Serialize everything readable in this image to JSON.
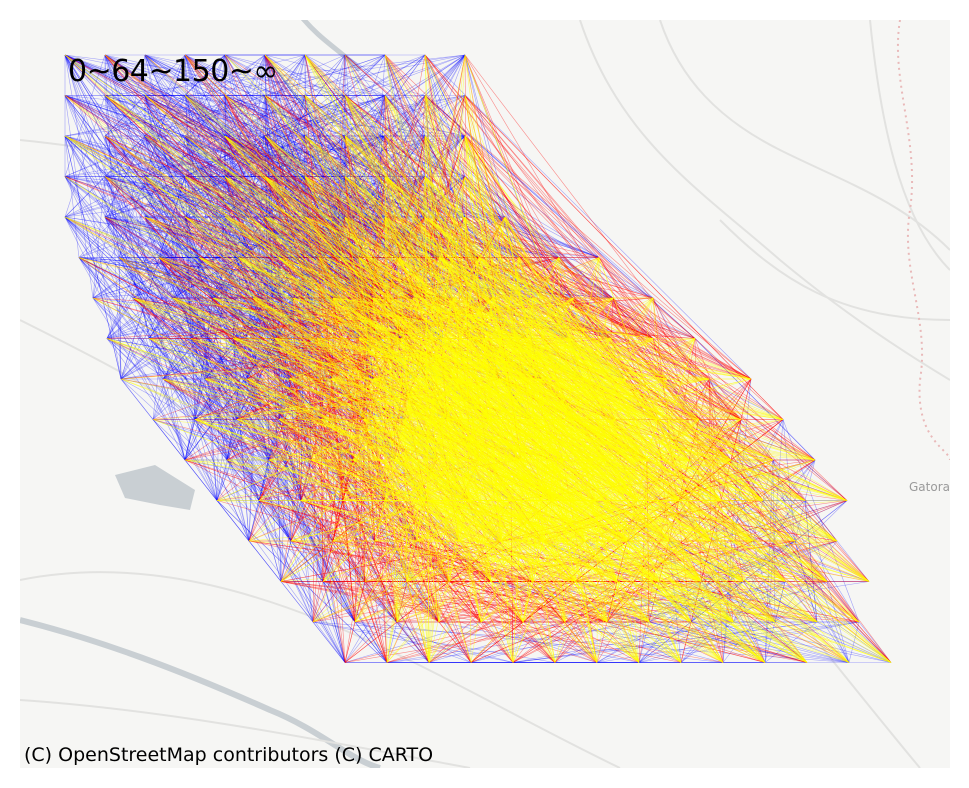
{
  "map": {
    "legend_text": "0~64~150~∞",
    "attribution": "(C) OpenStreetMap contributors (C) CARTO",
    "place_label": "Gatora",
    "colors": {
      "background": "#f6f6f4",
      "road": "#e2e2e0",
      "water": "#c9cfd3",
      "boundary": "#e9b9b9",
      "band_low": "#0000ff",
      "band_mid": "#ff0000",
      "band_high": "#ffff00"
    },
    "value_bands": [
      {
        "label": "0~64",
        "color": "#0000ff"
      },
      {
        "label": "64~150",
        "color": "#ff0000"
      },
      {
        "label": "150~∞",
        "color": "#ffff00"
      }
    ]
  }
}
